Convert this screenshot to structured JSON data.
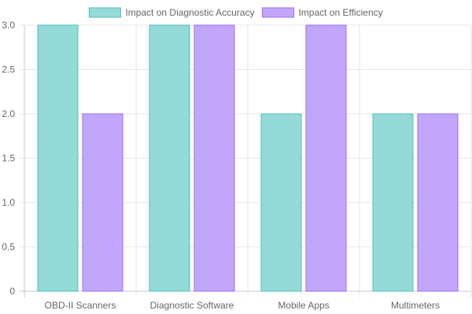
{
  "chart_data": {
    "type": "bar",
    "title": "",
    "xlabel": "",
    "ylabel": "",
    "categories": [
      "OBD-II Scanners",
      "Diagnostic Software",
      "Mobile Apps",
      "Multimeters"
    ],
    "series": [
      {
        "name": "Impact on Diagnostic Accuracy",
        "values": [
          3,
          3,
          2,
          2
        ],
        "fill": "#94dad8",
        "stroke": "#4fbfb9"
      },
      {
        "name": "Impact on Efficiency",
        "values": [
          2,
          3,
          3,
          2
        ],
        "fill": "#c2a6fb",
        "stroke": "#9b6ef2"
      }
    ],
    "ylim": [
      0,
      3
    ],
    "yticks": [
      "0",
      "0.5",
      "1.0",
      "1.5",
      "2.0",
      "2.5",
      "3.0"
    ],
    "grid": true,
    "legend_position": "top-center"
  }
}
